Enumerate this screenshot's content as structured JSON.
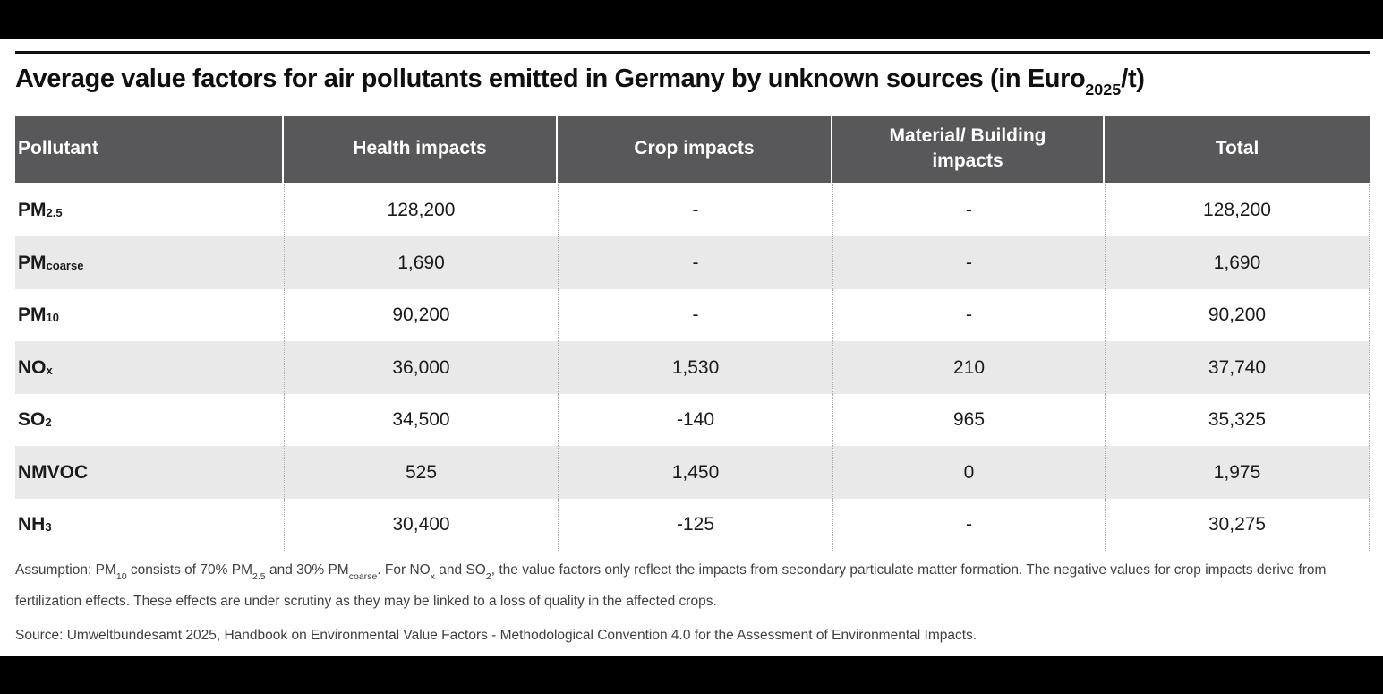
{
  "page": {
    "title_segments": [
      {
        "t": "Average value factors for air pollutants emitted in Germany by unknown sources (in Euro"
      },
      {
        "t": "2025",
        "sub": true
      },
      {
        "t": "/t)"
      }
    ]
  },
  "table": {
    "columns": [
      "Pollutant",
      "Health impacts",
      "Crop impacts",
      "Material/ Building impacts",
      "Total"
    ],
    "rows": [
      {
        "id": "pm2-5",
        "pollutant": [
          {
            "t": "PM"
          },
          {
            "t": "2.5",
            "sub": true
          }
        ],
        "values": [
          "128,200",
          "-",
          "-",
          "128,200"
        ]
      },
      {
        "id": "pm-coarse",
        "pollutant": [
          {
            "t": "PM"
          },
          {
            "t": "coarse",
            "sub": true
          }
        ],
        "values": [
          "1,690",
          "-",
          "-",
          "1,690"
        ]
      },
      {
        "id": "pm10",
        "pollutant": [
          {
            "t": "PM"
          },
          {
            "t": "10",
            "sub": true
          }
        ],
        "values": [
          "90,200",
          "-",
          "-",
          "90,200"
        ]
      },
      {
        "id": "nox",
        "pollutant": [
          {
            "t": "NO"
          },
          {
            "t": "x",
            "sub": true
          }
        ],
        "values": [
          "36,000",
          "1,530",
          "210",
          "37,740"
        ]
      },
      {
        "id": "so2",
        "pollutant": [
          {
            "t": "SO"
          },
          {
            "t": "2",
            "sub": true
          }
        ],
        "values": [
          "34,500",
          "-140",
          "965",
          "35,325"
        ]
      },
      {
        "id": "nmvoc",
        "pollutant": [
          {
            "t": "NMVOC"
          }
        ],
        "values": [
          "525",
          "1,450",
          "0",
          "1,975"
        ]
      },
      {
        "id": "nh3",
        "pollutant": [
          {
            "t": "NH"
          },
          {
            "t": "3",
            "sub": true
          }
        ],
        "values": [
          "30,400",
          "-125",
          "-",
          "30,275"
        ]
      }
    ]
  },
  "notes": {
    "assumption_segments": [
      {
        "t": "Assumption: PM"
      },
      {
        "t": "10",
        "sub": true
      },
      {
        "t": " consists of 70% PM"
      },
      {
        "t": "2.5",
        "sub": true
      },
      {
        "t": " and 30% PM"
      },
      {
        "t": "coarse",
        "sub": true
      },
      {
        "t": ". For NO"
      },
      {
        "t": "x",
        "sub": true
      },
      {
        "t": " and SO"
      },
      {
        "t": "2",
        "sub": true
      },
      {
        "t": ", the value factors only reflect the impacts from secondary particulate matter formation. The negative values for crop impacts derive from fertilization effects. These effects are under scrutiny as they may be linked to a loss of quality in the affected crops."
      }
    ],
    "source": "Source: Umweltbundesamt 2025, Handbook on Environmental Value Factors - Methodological Convention 4.0 for the Assessment of Environmental Impacts."
  },
  "colors": {
    "header_bg": "#58585a",
    "header_text": "#ffffff",
    "row_alt_bg": "#e9e9e9",
    "body_text": "#1a1a1a",
    "note_text": "#3f3f3f",
    "frame_bar": "#000000",
    "divider_dotted": "#ababab",
    "title_rule": "#111111"
  },
  "chart_data": {
    "type": "table",
    "title": "Average value factors for air pollutants emitted in Germany by unknown sources (in Euro2025/t)",
    "unit": "Euro2025 per tonne",
    "columns": [
      "Pollutant",
      "Health impacts",
      "Crop impacts",
      "Material/ Building impacts",
      "Total"
    ],
    "rows": [
      [
        "PM2.5",
        "128,200",
        "-",
        "-",
        "128,200"
      ],
      [
        "PMcoarse",
        "1,690",
        "-",
        "-",
        "1,690"
      ],
      [
        "PM10",
        "90,200",
        "-",
        "-",
        "90,200"
      ],
      [
        "NOx",
        "36,000",
        "1,530",
        "210",
        "37,740"
      ],
      [
        "SO2",
        "34,500",
        "-140",
        "965",
        "35,325"
      ],
      [
        "NMVOC",
        "525",
        "1,450",
        "0",
        "1,975"
      ],
      [
        "NH3",
        "30,400",
        "-125",
        "-",
        "30,275"
      ]
    ],
    "note": "Assumption: PM10 consists of 70% PM2.5 and 30% PMcoarse. For NOx and SO2, the value factors only reflect the impacts from secondary particulate matter formation. The negative values for crop impacts derive from fertilization effects. These effects are under scrutiny as they may be linked to a loss of quality in the affected crops.",
    "source": "Source: Umweltbundesamt 2025, Handbook on Environmental Value Factors - Methodological Convention 4.0 for the Assessment of Environmental Impacts."
  }
}
